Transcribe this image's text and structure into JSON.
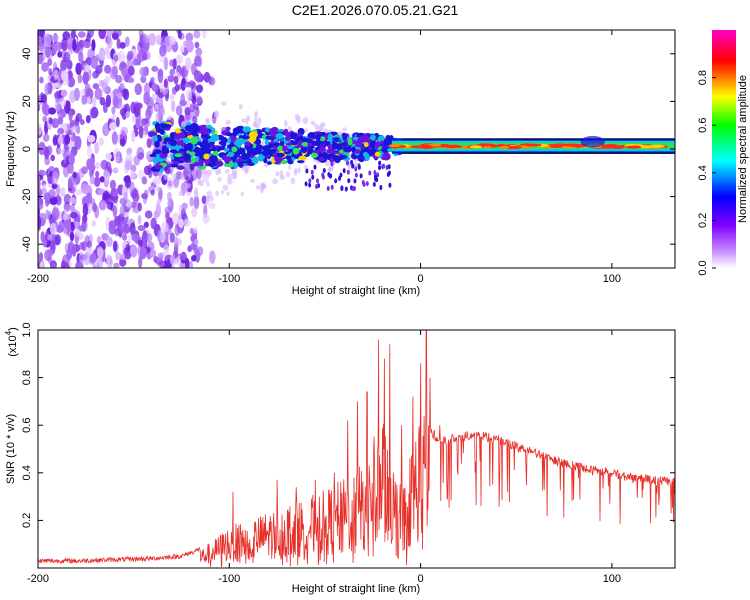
{
  "title": "C2E1.2026.070.05.21.G21",
  "chart_data": [
    {
      "type": "heatmap",
      "name": "spectrogram",
      "xlabel": "Height of straight line (km)",
      "ylabel": "Frequency (Hz)",
      "xlim": [
        -200,
        133
      ],
      "ylim": [
        -50,
        50
      ],
      "xticks": [
        -200,
        -100,
        0,
        100
      ],
      "yticks": [
        -40,
        -20,
        0,
        20,
        40
      ],
      "ridge": {
        "description_x_range": [
          -140,
          133
        ],
        "frequency_center_hz": 1,
        "noise_region_x_range": [
          -200,
          -115
        ]
      },
      "colorbar": {
        "label": "Normalized spectral amplitude",
        "range": [
          0.0,
          1.0
        ],
        "ticks": [
          0.0,
          0.2,
          0.4,
          0.6,
          0.8
        ],
        "tick_labels": [
          "0.0",
          "0.2",
          "0.4",
          "0.6",
          "0.8"
        ],
        "colors": [
          "#ffffff",
          "#8000ff",
          "#0000ff",
          "#00ffff",
          "#00ff00",
          "#ffff00",
          "#ff0000",
          "#ff00ff"
        ]
      }
    },
    {
      "type": "line",
      "name": "snr",
      "xlabel": "Height of straight line (km)",
      "ylabel": "SNR (10 * v/v)",
      "scale_label": "(x10",
      "scale_exp": "4",
      "xlim": [
        -200,
        133
      ],
      "ylim": [
        0,
        1.0
      ],
      "xticks": [
        -200,
        -100,
        0,
        100
      ],
      "yticks": [
        0.2,
        0.4,
        0.6,
        0.8,
        1.0
      ],
      "ytick_labels": [
        "0.2",
        "0.4",
        "0.6",
        "0.8",
        "1.0"
      ],
      "color": "#e8302a",
      "envelope": {
        "x": [
          -200,
          -180,
          -160,
          -140,
          -125,
          -115,
          -108,
          -100,
          -90,
          -80,
          -70,
          -60,
          -50,
          -40,
          -30,
          -22,
          -18,
          -15,
          -10,
          -5,
          0,
          5,
          10,
          20,
          30,
          40,
          50,
          60,
          70,
          80,
          90,
          100,
          110,
          120,
          133
        ],
        "y": [
          0.03,
          0.03,
          0.035,
          0.04,
          0.05,
          0.08,
          0.12,
          0.18,
          0.2,
          0.24,
          0.27,
          0.3,
          0.33,
          0.38,
          0.45,
          0.6,
          0.7,
          0.45,
          0.35,
          0.5,
          0.7,
          0.6,
          0.55,
          0.57,
          0.58,
          0.56,
          0.53,
          0.5,
          0.47,
          0.45,
          0.43,
          0.42,
          0.4,
          0.39,
          0.38
        ]
      },
      "peaks": {
        "x": [
          -98,
          -75,
          -65,
          -55,
          -45,
          -38,
          -33,
          -28,
          -22,
          -19,
          -16,
          -10,
          -4,
          0,
          3,
          5,
          10
        ],
        "y": [
          0.32,
          0.37,
          0.34,
          0.37,
          0.4,
          0.62,
          0.7,
          0.74,
          0.96,
          0.88,
          0.94,
          0.6,
          0.72,
          0.86,
          1.0,
          0.8,
          0.6
        ]
      }
    }
  ]
}
